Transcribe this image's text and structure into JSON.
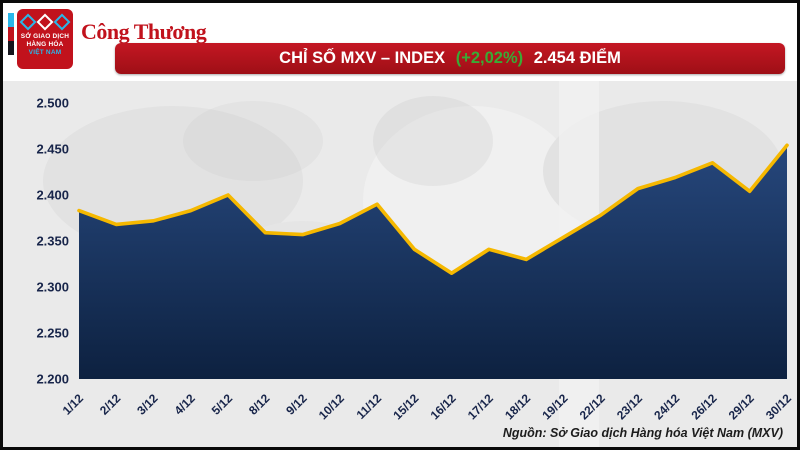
{
  "header": {
    "title_main": "CHỈ SỐ MXV – INDEX ",
    "title_change": "(+2,02%)",
    "title_value": " 2.454 ĐIỂM",
    "banner_color": "#b5121b",
    "change_color": "#3aaa35"
  },
  "logos": {
    "mxv_lines": [
      "SỞ GIAO DỊCH",
      "HÀNG HÓA",
      "VIỆT NAM"
    ],
    "congthuong": "Công Thương"
  },
  "footer": {
    "source": "Nguồn: Sở Giao dịch Hàng hóa Việt Nam (MXV)"
  },
  "chart_data": {
    "type": "area",
    "title": "CHỈ SỐ MXV – INDEX (+2,02%) 2.454 ĐIỂM",
    "x": [
      "1/12",
      "2/12",
      "3/12",
      "4/12",
      "5/12",
      "8/12",
      "9/12",
      "10/12",
      "11/12",
      "15/12",
      "16/12",
      "17/12",
      "18/12",
      "19/12",
      "22/12",
      "23/12",
      "24/12",
      "26/12",
      "29/12",
      "30/12"
    ],
    "values": [
      2383,
      2368,
      2372,
      2383,
      2400,
      2359,
      2357,
      2369,
      2390,
      2341,
      2315,
      2341,
      2330,
      2354,
      2378,
      2407,
      2419,
      2435,
      2404,
      2454
    ],
    "ylim": [
      2200,
      2500
    ],
    "yticks": [
      2500,
      2450,
      2400,
      2350,
      2300,
      2250,
      2200
    ],
    "ytick_labels": [
      "2.500",
      "2.450",
      "2.400",
      "2.350",
      "2.300",
      "2.250",
      "2.200"
    ],
    "xlabel": "",
    "ylabel": "",
    "grid": false,
    "legend": "none",
    "line_color": "#f5b800",
    "area_color_top": "#26477c",
    "area_color_bottom": "#0d2140",
    "axis_label_color": "#18254a"
  }
}
